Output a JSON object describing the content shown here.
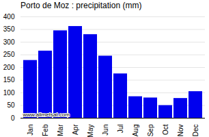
{
  "chart_data": {
    "type": "bar",
    "title": "Porto de Moz : precipitation (mm)",
    "categories": [
      "Jan",
      "Feb",
      "Mar",
      "Apr",
      "May",
      "Jun",
      "Jul",
      "Aug",
      "Sep",
      "Oct",
      "Nov",
      "Dec"
    ],
    "values": [
      228,
      265,
      345,
      362,
      330,
      245,
      175,
      85,
      80,
      50,
      78,
      105
    ],
    "color": "#0000EE",
    "ylim": [
      0,
      400
    ],
    "yticks": [
      0,
      50,
      100,
      150,
      200,
      250,
      300,
      350,
      400
    ],
    "grid": true,
    "annotation": "www.allmetsat.com"
  }
}
